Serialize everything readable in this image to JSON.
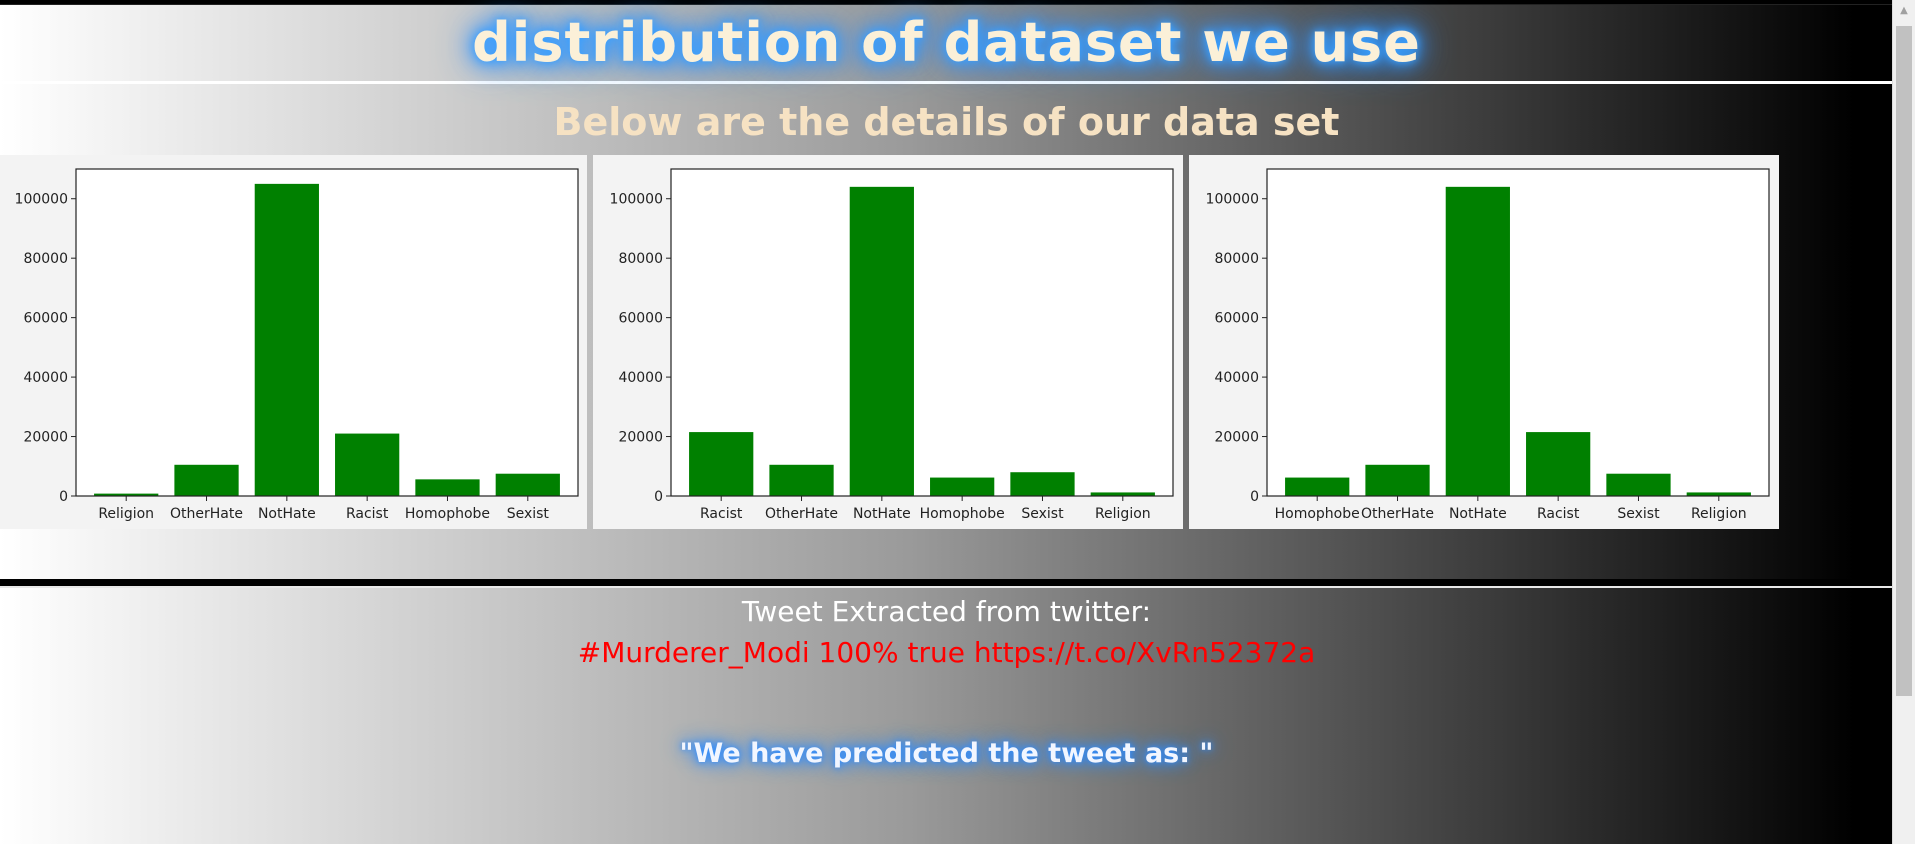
{
  "header": {
    "title": "distribution of dataset we use",
    "subtitle": "Below are the details of our data set"
  },
  "tweet": {
    "heading": "Tweet Extracted from twitter:",
    "text": "#Murderer_Modi 100% true https://t.co/XvRn52372a"
  },
  "prediction": {
    "label": "\"We have predicted the tweet as: \""
  },
  "scrollbar": {
    "up_arrow": "▲"
  },
  "colors": {
    "bar": "#008000",
    "tweet_text": "#ff0000",
    "title_glow": "#3aa0ff"
  },
  "chart_data": [
    {
      "type": "bar",
      "categories": [
        "Religion",
        "OtherHate",
        "NotHate",
        "Racist",
        "Homophobe",
        "Sexist"
      ],
      "values": [
        800,
        10500,
        105000,
        21000,
        5600,
        7500
      ],
      "ylim": [
        0,
        110000
      ],
      "yticks": [
        0,
        20000,
        40000,
        60000,
        80000,
        100000
      ],
      "color": "#008000"
    },
    {
      "type": "bar",
      "categories": [
        "Racist",
        "OtherHate",
        "NotHate",
        "Homophobe",
        "Sexist",
        "Religion"
      ],
      "values": [
        21500,
        10500,
        104000,
        6200,
        8000,
        1200
      ],
      "ylim": [
        0,
        110000
      ],
      "yticks": [
        0,
        20000,
        40000,
        60000,
        80000,
        100000
      ],
      "color": "#008000"
    },
    {
      "type": "bar",
      "categories": [
        "Homophobe",
        "OtherHate",
        "NotHate",
        "Racist",
        "Sexist",
        "Religion"
      ],
      "values": [
        6200,
        10500,
        104000,
        21500,
        7500,
        1200
      ],
      "ylim": [
        0,
        110000
      ],
      "yticks": [
        0,
        20000,
        40000,
        60000,
        80000,
        100000
      ],
      "color": "#008000"
    }
  ]
}
